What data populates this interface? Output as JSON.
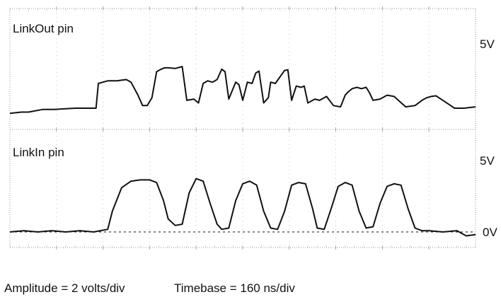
{
  "chart_data": [
    {
      "type": "line",
      "title": "LinkOut pin",
      "xlabel": "",
      "ylabel": "",
      "xlim": [
        0,
        10
      ],
      "ylim": [
        0,
        5.5
      ],
      "y_tick_labels": [
        {
          "value": 4.88,
          "label": "5V"
        }
      ],
      "grid": true,
      "series": [
        {
          "x": [
            0.0,
            0.25,
            0.4,
            0.7,
            0.95,
            1.4,
            1.7,
            1.85,
            1.9,
            2.1,
            2.3,
            2.5,
            2.6,
            2.75,
            2.85,
            2.95,
            3.05,
            3.15,
            3.25,
            3.32,
            3.4,
            3.55,
            3.7,
            3.8,
            3.95,
            4.05,
            4.15,
            4.25,
            4.35,
            4.45,
            4.55,
            4.62,
            4.7,
            4.85,
            4.92,
            5.0,
            5.1,
            5.2,
            5.28,
            5.35,
            5.45,
            5.55,
            5.6,
            5.7,
            5.8,
            5.9,
            5.97,
            6.05,
            6.15,
            6.25,
            6.32,
            6.4,
            6.5,
            6.55,
            6.65,
            6.8,
            6.95,
            7.1,
            7.2,
            7.25,
            7.35,
            7.45,
            7.55,
            7.65,
            7.72,
            7.8,
            7.95,
            8.1,
            8.25,
            8.5,
            8.7,
            8.85,
            8.95,
            9.05,
            9.15,
            9.3,
            9.55,
            9.75,
            10.0
          ],
          "y": [
            0.2,
            0.3,
            0.3,
            0.5,
            0.5,
            0.6,
            0.6,
            0.6,
            2.5,
            2.7,
            2.7,
            2.8,
            2.6,
            1.6,
            0.8,
            0.8,
            1.4,
            3.4,
            3.6,
            3.7,
            3.7,
            3.65,
            3.8,
            1.2,
            1.3,
            1.0,
            2.5,
            2.7,
            2.6,
            2.8,
            3.6,
            3.4,
            1.3,
            2.6,
            2.4,
            1.2,
            2.6,
            2.5,
            3.3,
            3.45,
            1.0,
            1.4,
            2.6,
            2.5,
            3.0,
            3.5,
            3.55,
            1.2,
            2.3,
            2.2,
            2.3,
            1.0,
            1.2,
            1.3,
            1.2,
            1.5,
            0.8,
            0.7,
            1.6,
            1.8,
            2.1,
            2.2,
            2.1,
            2.2,
            1.8,
            1.2,
            1.3,
            1.6,
            1.5,
            0.7,
            0.8,
            1.2,
            1.4,
            1.5,
            1.55,
            1.2,
            0.6,
            0.6,
            0.7
          ]
        }
      ]
    },
    {
      "type": "line",
      "title": "LinkIn pin",
      "xlabel": "",
      "ylabel": "",
      "xlim": [
        0,
        10
      ],
      "ylim": [
        -0.5,
        5.5
      ],
      "y_tick_labels": [
        {
          "value": 4.88,
          "label": "5V"
        },
        {
          "value": 0,
          "label": "0V"
        }
      ],
      "baseline": 0,
      "grid": true,
      "series": [
        {
          "x": [
            0.0,
            0.3,
            0.6,
            0.9,
            1.2,
            1.5,
            1.8,
            2.1,
            2.2,
            2.4,
            2.6,
            2.8,
            3.0,
            3.15,
            3.3,
            3.4,
            3.55,
            3.7,
            3.85,
            4.0,
            4.15,
            4.3,
            4.45,
            4.55,
            4.7,
            4.85,
            5.0,
            5.15,
            5.3,
            5.45,
            5.6,
            5.75,
            5.9,
            6.05,
            6.2,
            6.35,
            6.5,
            6.6,
            6.75,
            6.9,
            7.05,
            7.2,
            7.35,
            7.5,
            7.65,
            7.8,
            7.95,
            8.1,
            8.25,
            8.4,
            8.55,
            8.7,
            8.85,
            9.0,
            9.3,
            9.6,
            9.8,
            10.0
          ],
          "y": [
            0.0,
            0.1,
            0.0,
            0.1,
            0.0,
            0.1,
            0.0,
            0.2,
            1.6,
            3.4,
            3.9,
            4.0,
            4.0,
            3.8,
            2.4,
            1.0,
            0.5,
            0.6,
            3.0,
            4.1,
            3.9,
            2.2,
            0.6,
            0.2,
            0.3,
            2.4,
            3.7,
            3.9,
            3.6,
            1.6,
            0.3,
            0.2,
            1.6,
            3.6,
            3.8,
            3.7,
            1.8,
            0.3,
            0.2,
            1.8,
            3.5,
            3.8,
            3.6,
            1.6,
            0.3,
            0.4,
            2.2,
            3.5,
            3.7,
            3.6,
            1.8,
            0.3,
            0.1,
            0.1,
            0.0,
            0.1,
            -0.3,
            -0.2
          ]
        }
      ]
    }
  ],
  "footer": {
    "amplitude": "Amplitude = 2 volts/div",
    "timebase": "Timebase = 160 ns/div"
  },
  "colors": {
    "trace": "#111111",
    "grid": "#b8b8b8",
    "frame": "#999999"
  }
}
